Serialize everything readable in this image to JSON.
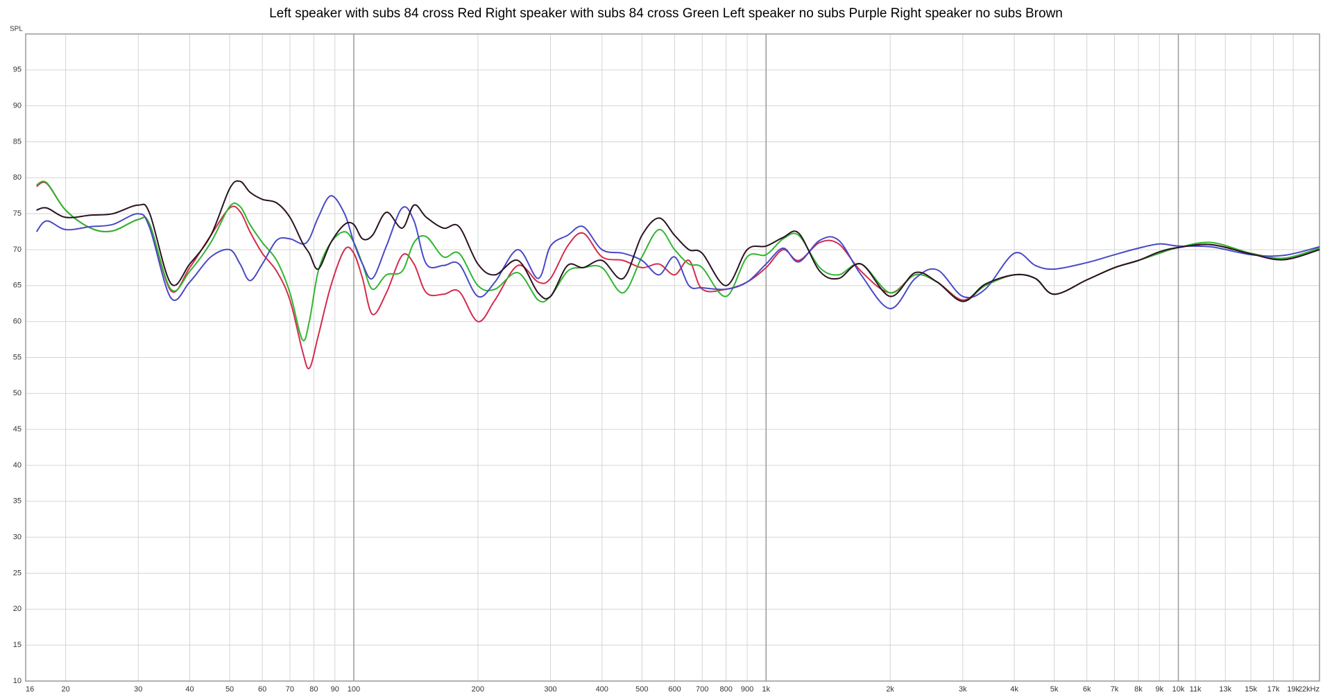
{
  "chart_data": {
    "type": "line",
    "title": "Left speaker with subs 84 cross Red Right speaker with subs 84 cross Green Left speaker no subs Purple Right speaker no subs Brown",
    "y_label": "SPL",
    "xscale": "log",
    "grid": true,
    "xlim": [
      16,
      22000
    ],
    "ylim": [
      10,
      100
    ],
    "yticks": [
      10,
      15,
      20,
      25,
      30,
      35,
      40,
      45,
      50,
      55,
      60,
      65,
      70,
      75,
      80,
      85,
      90,
      95
    ],
    "xticks": [
      16,
      20,
      30,
      40,
      50,
      60,
      70,
      80,
      90,
      100,
      200,
      300,
      400,
      500,
      600,
      700,
      800,
      900,
      {
        "value": 1000,
        "label": "1k"
      },
      {
        "value": 2000,
        "label": "2k"
      },
      {
        "value": 3000,
        "label": "3k"
      },
      {
        "value": 4000,
        "label": "4k"
      },
      {
        "value": 5000,
        "label": "5k"
      },
      {
        "value": 6000,
        "label": "6k"
      },
      {
        "value": 7000,
        "label": "7k"
      },
      {
        "value": 8000,
        "label": "8k"
      },
      {
        "value": 9000,
        "label": "9k"
      },
      {
        "value": 10000,
        "label": "10k"
      },
      {
        "value": 11000,
        "label": "11k"
      },
      {
        "value": 13000,
        "label": "13k"
      },
      {
        "value": 15000,
        "label": "15k"
      },
      {
        "value": 17000,
        "label": "17k"
      },
      {
        "value": 19000,
        "label": "19k"
      },
      {
        "value": 22000,
        "label": "22kHz"
      }
    ],
    "x": [
      17,
      18,
      20,
      23,
      26,
      30,
      32,
      36,
      40,
      45,
      50,
      53,
      56,
      60,
      65,
      70,
      75,
      78,
      82,
      88,
      95,
      100,
      105,
      111,
      120,
      131,
      140,
      150,
      165,
      180,
      200,
      220,
      250,
      280,
      300,
      330,
      360,
      400,
      450,
      500,
      550,
      600,
      650,
      700,
      800,
      900,
      1000,
      1100,
      1200,
      1350,
      1500,
      1700,
      2000,
      2300,
      2600,
      3000,
      3400,
      4000,
      4500,
      5000,
      6000,
      7000,
      8000,
      9000,
      10000,
      12000,
      15000,
      18000,
      22000
    ],
    "series": [
      {
        "color": "#d42a4c",
        "values": [
          78.8,
          79.2,
          75.5,
          73,
          72.6,
          74.2,
          73.5,
          64.3,
          67.5,
          72,
          75.8,
          75.3,
          72.5,
          69.5,
          67,
          63,
          56,
          53.5,
          58,
          65,
          70,
          69.5,
          66,
          61,
          64,
          69.2,
          68,
          64,
          63.8,
          64.2,
          60,
          63,
          67.8,
          65.5,
          66,
          70.5,
          72.3,
          69,
          68.5,
          67.5,
          68,
          66.5,
          68.5,
          64.5,
          64.5,
          65.5,
          67.5,
          70,
          68.5,
          71,
          70.8,
          67,
          64,
          66.5,
          65.5,
          63,
          65,
          66.5,
          66,
          63.8,
          65.8,
          67.5,
          68.5,
          69.5,
          70.3,
          70.7,
          69.5,
          68.8,
          70.2
        ]
      },
      {
        "color": "#2fb52f",
        "values": [
          79,
          79.3,
          75.5,
          73,
          72.6,
          74.2,
          73.5,
          64.5,
          67,
          71,
          76,
          76,
          73.5,
          71,
          68.5,
          64,
          57.5,
          60,
          67,
          71,
          72.5,
          71,
          68,
          64.5,
          66.5,
          67,
          71,
          71.8,
          69,
          69.5,
          65,
          64.5,
          66.8,
          63,
          63.5,
          67,
          67.5,
          67.5,
          64,
          69,
          72.8,
          70,
          68,
          67.5,
          63.5,
          69,
          69.3,
          71.5,
          72,
          67.5,
          66.5,
          68,
          64,
          66.5,
          65.5,
          62.8,
          65,
          66.5,
          66,
          63.8,
          65.8,
          67.5,
          68.5,
          69.5,
          70.3,
          71,
          69.5,
          68.8,
          70.2
        ]
      },
      {
        "color": "#4848c8",
        "values": [
          72.5,
          74,
          72.8,
          73.2,
          73.5,
          75,
          73,
          63.3,
          65.5,
          69,
          70,
          68,
          65.7,
          68,
          71.3,
          71.5,
          70.8,
          71.5,
          74.5,
          77.5,
          75,
          71,
          68,
          66,
          70.5,
          75.8,
          74,
          68,
          67.8,
          68,
          63.5,
          65.5,
          70,
          66,
          70.5,
          72,
          73.2,
          70,
          69.5,
          68.5,
          66.5,
          69,
          65,
          64.7,
          64.5,
          65.5,
          68,
          70.2,
          68.3,
          71.3,
          71.3,
          66.5,
          61.8,
          66,
          67.2,
          63.5,
          64.5,
          69.5,
          67.8,
          67.3,
          68.2,
          69.3,
          70.2,
          70.8,
          70.5,
          70.4,
          69.3,
          69.2,
          70.4
        ]
      },
      {
        "color": "#2a1122",
        "values": [
          75.5,
          75.8,
          74.5,
          74.8,
          75,
          76.2,
          75,
          65.3,
          68,
          72,
          78.5,
          79.5,
          78,
          77,
          76.5,
          74.5,
          71,
          69.5,
          67.3,
          71,
          73.5,
          73.5,
          71.5,
          72,
          75.2,
          73,
          76.2,
          74.5,
          73,
          73.2,
          68,
          66.5,
          68.5,
          64,
          63.5,
          67.8,
          67.5,
          68.5,
          66,
          72,
          74.4,
          72,
          70,
          69.5,
          65,
          70,
          70.5,
          71.7,
          72.3,
          67,
          66,
          68,
          63.5,
          66.8,
          65.5,
          62.8,
          65.2,
          66.5,
          66,
          63.8,
          65.8,
          67.5,
          68.5,
          69.7,
          70.3,
          70.7,
          69.4,
          68.6,
          70
        ]
      }
    ]
  }
}
